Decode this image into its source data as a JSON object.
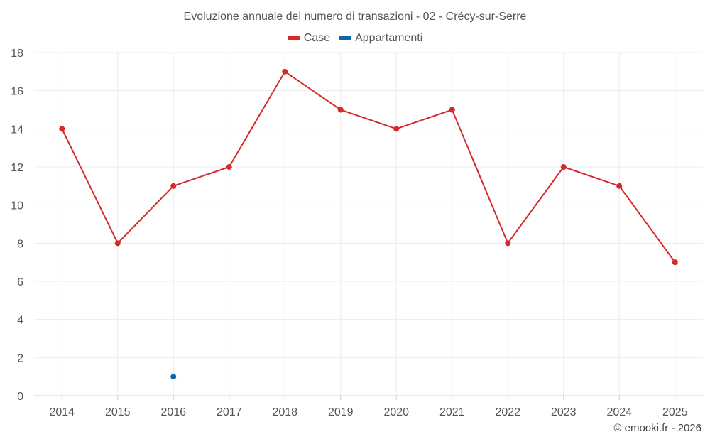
{
  "chart_data": {
    "type": "line",
    "title": "Evoluzione annuale del numero di transazioni - 02 - Crécy-sur-Serre",
    "categories": [
      "2014",
      "2015",
      "2016",
      "2017",
      "2018",
      "2019",
      "2020",
      "2021",
      "2022",
      "2023",
      "2024",
      "2025"
    ],
    "series": [
      {
        "name": "Case",
        "color": "#d42a2a",
        "values": [
          14,
          8,
          11,
          12,
          17,
          15,
          14,
          15,
          8,
          12,
          11,
          7
        ]
      },
      {
        "name": "Appartamenti",
        "color": "#1266a3",
        "values": [
          null,
          null,
          1,
          null,
          null,
          null,
          null,
          null,
          null,
          null,
          null,
          null
        ]
      }
    ],
    "yticks": [
      0,
      2,
      4,
      6,
      8,
      10,
      12,
      14,
      16,
      18
    ],
    "ylim": [
      0,
      18
    ],
    "xlabel": "",
    "ylabel": "",
    "legend_position": "top-center",
    "grid": true
  },
  "credit": "© emooki.fr - 2026"
}
